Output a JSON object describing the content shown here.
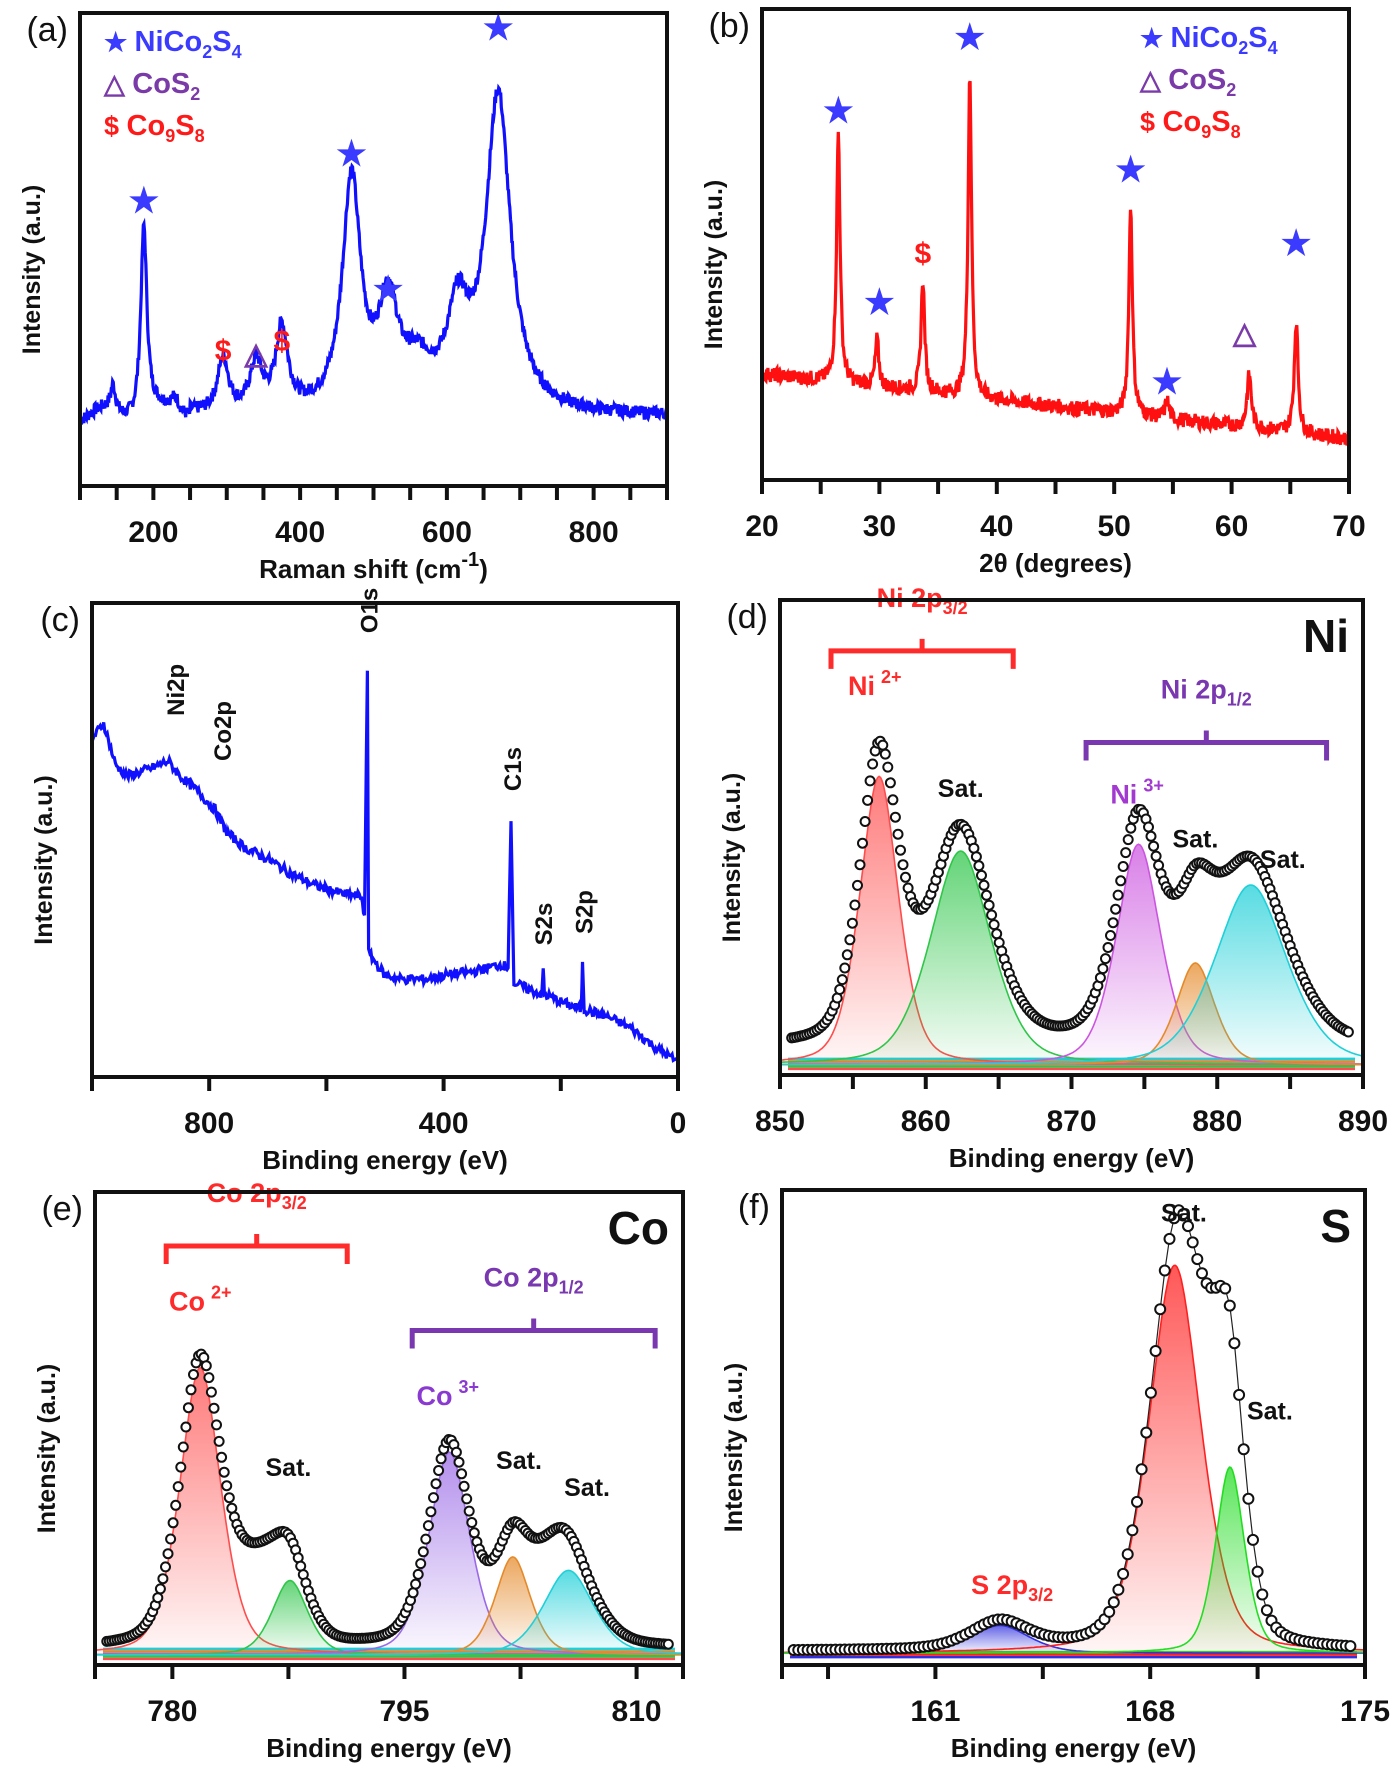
{
  "chart_data": [
    {
      "id": "a",
      "panel_label": "(a)",
      "type": "line",
      "title": "",
      "xlabel": "Raman shift (cm",
      "xlabel_sup": "-1",
      "xlabel_end": ")",
      "ylabel": "Intensity (a.u.)",
      "xlim": [
        100,
        900
      ],
      "xticks": [
        200,
        400,
        600,
        800
      ],
      "minor_step": 50,
      "color": "#1010ff",
      "baseline": 0.22,
      "noise": 0.02,
      "peaks": [
        {
          "x": 145,
          "h": 0.08,
          "w": 4
        },
        {
          "x": 187,
          "h": 0.6,
          "w": 5
        },
        {
          "x": 230,
          "h": 0.05,
          "w": 8
        },
        {
          "x": 295,
          "h": 0.17,
          "w": 9
        },
        {
          "x": 340,
          "h": 0.15,
          "w": 10
        },
        {
          "x": 375,
          "h": 0.26,
          "w": 10
        },
        {
          "x": 470,
          "h": 0.73,
          "w": 15
        },
        {
          "x": 520,
          "h": 0.32,
          "w": 16
        },
        {
          "x": 560,
          "h": 0.12,
          "w": 25
        },
        {
          "x": 615,
          "h": 0.28,
          "w": 18
        },
        {
          "x": 670,
          "h": 1.0,
          "w": 20
        }
      ],
      "legend": [
        {
          "symbol": "★",
          "label": "NiCo",
          "sub1": "2",
          "mid": "S",
          "sub2": "4",
          "color": "#3b3bff"
        },
        {
          "symbol": "△",
          "label": "CoS",
          "sub1": "2",
          "mid": "",
          "sub2": "",
          "color": "#7a3aa8"
        },
        {
          "symbol": "$",
          "label": "Co",
          "sub1": "9",
          "mid": "S",
          "sub2": "8",
          "color": "#ff1a1a"
        }
      ],
      "markers": [
        {
          "x": 187,
          "y": 0.9,
          "symbol": "★",
          "color": "#3b3bff"
        },
        {
          "x": 295,
          "y": 0.43,
          "symbol": "$",
          "color": "#ff1a1a"
        },
        {
          "x": 340,
          "y": 0.42,
          "symbol": "△",
          "color": "#7a3aa8"
        },
        {
          "x": 375,
          "y": 0.46,
          "symbol": "$",
          "color": "#ff1a1a"
        },
        {
          "x": 470,
          "y": 1.05,
          "symbol": "★",
          "color": "#3b3bff"
        },
        {
          "x": 520,
          "y": 0.62,
          "symbol": "★",
          "color": "#3b3bff"
        },
        {
          "x": 670,
          "y": 1.45,
          "symbol": "★",
          "color": "#3b3bff"
        }
      ],
      "ylim": [
        0,
        1.5
      ]
    },
    {
      "id": "b",
      "panel_label": "(b)",
      "type": "line",
      "xlabel": "2θ (degrees)",
      "ylabel": "Intensity (a.u.)",
      "xlim": [
        20,
        70
      ],
      "xticks": [
        20,
        30,
        40,
        50,
        60,
        70
      ],
      "minor_step": 5,
      "color": "#ff1010",
      "baseline_start": 0.36,
      "baseline_end": 0.14,
      "noise": 0.025,
      "peaks": [
        {
          "x": 26.5,
          "h": 0.85,
          "w": 0.18
        },
        {
          "x": 29.8,
          "h": 0.16,
          "w": 0.18
        },
        {
          "x": 33.7,
          "h": 0.38,
          "w": 0.18
        },
        {
          "x": 37.7,
          "h": 1.1,
          "w": 0.18
        },
        {
          "x": 51.4,
          "h": 0.71,
          "w": 0.18
        },
        {
          "x": 54.5,
          "h": 0.06,
          "w": 0.2
        },
        {
          "x": 61.5,
          "h": 0.18,
          "w": 0.22
        },
        {
          "x": 65.5,
          "h": 0.38,
          "w": 0.2
        }
      ],
      "legend": [
        {
          "symbol": "★",
          "label": "NiCo",
          "sub1": "2",
          "mid": "S",
          "sub2": "4",
          "color": "#3b3bff"
        },
        {
          "symbol": "△",
          "label": "CoS",
          "sub1": "2",
          "mid": "",
          "sub2": "",
          "color": "#7a3aa8"
        },
        {
          "symbol": "$",
          "label": "Co",
          "sub1": "9",
          "mid": "S",
          "sub2": "8",
          "color": "#ff1a1a"
        }
      ],
      "markers": [
        {
          "x": 26.5,
          "y": 1.25,
          "symbol": "★",
          "color": "#3b3bff"
        },
        {
          "x": 30.0,
          "y": 0.6,
          "symbol": "★",
          "color": "#3b3bff"
        },
        {
          "x": 33.7,
          "y": 0.77,
          "symbol": "$",
          "color": "#ff1a1a"
        },
        {
          "x": 37.7,
          "y": 1.5,
          "symbol": "★",
          "color": "#3b3bff"
        },
        {
          "x": 51.4,
          "y": 1.05,
          "symbol": "★",
          "color": "#3b3bff"
        },
        {
          "x": 54.5,
          "y": 0.33,
          "symbol": "★",
          "color": "#3b3bff"
        },
        {
          "x": 61.1,
          "y": 0.5,
          "symbol": "△",
          "color": "#7a3aa8"
        },
        {
          "x": 65.5,
          "y": 0.8,
          "symbol": "★",
          "color": "#3b3bff"
        }
      ],
      "ylim": [
        0,
        1.6
      ]
    },
    {
      "id": "c",
      "panel_label": "(c)",
      "type": "line",
      "xlabel": "Binding energy (eV)",
      "ylabel": "Intensity (a.u.)",
      "xlim": [
        1000,
        0
      ],
      "xticks": [
        800,
        400,
        0
      ],
      "minor_step": 200,
      "color": "#1010ff",
      "points": [
        [
          1000,
          0.72
        ],
        [
          980,
          0.76
        ],
        [
          960,
          0.65
        ],
        [
          940,
          0.62
        ],
        [
          900,
          0.64
        ],
        [
          870,
          0.66
        ],
        [
          850,
          0.62
        ],
        [
          820,
          0.58
        ],
        [
          790,
          0.53
        ],
        [
          770,
          0.47
        ],
        [
          740,
          0.43
        ],
        [
          700,
          0.4
        ],
        [
          660,
          0.36
        ],
        [
          620,
          0.33
        ],
        [
          580,
          0.31
        ],
        [
          540,
          0.3
        ],
        [
          535,
          0.25
        ],
        [
          530,
          0.9
        ],
        [
          528,
          0.15
        ],
        [
          500,
          0.09
        ],
        [
          470,
          0.08
        ],
        [
          430,
          0.08
        ],
        [
          400,
          0.09
        ],
        [
          350,
          0.1
        ],
        [
          300,
          0.12
        ],
        [
          290,
          0.11
        ],
        [
          285,
          0.5
        ],
        [
          280,
          0.07
        ],
        [
          250,
          0.05
        ],
        [
          232,
          0.04
        ],
        [
          230,
          0.11
        ],
        [
          228,
          0.04
        ],
        [
          200,
          0.02
        ],
        [
          165,
          0.0
        ],
        [
          163,
          0.13
        ],
        [
          160,
          0.0
        ],
        [
          120,
          -0.02
        ],
        [
          80,
          -0.05
        ],
        [
          40,
          -0.1
        ],
        [
          0,
          -0.14
        ]
      ],
      "ylim": [
        -0.18,
        1.08
      ],
      "annotations": [
        {
          "text": "Ni2p",
          "x": 860,
          "y": 0.78
        },
        {
          "text": "Co2p",
          "x": 780,
          "y": 0.66
        },
        {
          "text": "O1s",
          "x": 530,
          "y": 1.0
        },
        {
          "text": "C1s",
          "x": 285,
          "y": 0.58
        },
        {
          "text": "S2s",
          "x": 232,
          "y": 0.17
        },
        {
          "text": "S2p",
          "x": 163,
          "y": 0.2
        }
      ]
    },
    {
      "id": "d",
      "panel_label": "(d)",
      "type": "line",
      "corner_label": "Ni",
      "xlabel": "Binding energy (eV)",
      "ylabel": "Intensity (a.u.)",
      "xlim": [
        850,
        890
      ],
      "xticks": [
        850,
        860,
        870,
        880,
        890
      ],
      "minor_step": 5,
      "ylim": [
        0,
        1.4
      ],
      "components": [
        {
          "center": 856.8,
          "height": 0.85,
          "width": 1.4,
          "color": "#ff4d4d"
        },
        {
          "center": 862.4,
          "height": 0.63,
          "width": 2.2,
          "color": "#2fc64a"
        },
        {
          "center": 874.6,
          "height": 0.65,
          "width": 1.6,
          "color": "#cc55e0"
        },
        {
          "center": 878.5,
          "height": 0.3,
          "width": 1.4,
          "color": "#e58a2a"
        },
        {
          "center": 882.3,
          "height": 0.53,
          "width": 2.6,
          "color": "#1fd0d8"
        }
      ],
      "envelope_extra": 0.05,
      "groups": [
        {
          "label": "Ni 2p",
          "sub": "3/2",
          "color": "#ff2a2a",
          "x0": 853.5,
          "x1": 866,
          "y": 1.25,
          "ly": 1.38
        },
        {
          "label": "Ni 2p",
          "sub": "1/2",
          "color": "#7a38b0",
          "x0": 871,
          "x1": 887.5,
          "y": 0.98,
          "ly": 1.11
        }
      ],
      "annotations": [
        {
          "text": "Ni",
          "sup": "2+",
          "x": 856.5,
          "y": 1.12,
          "color": "#ff2a2a"
        },
        {
          "text": "Sat.",
          "x": 862.4,
          "y": 0.82,
          "color": "#111111"
        },
        {
          "text": "Ni",
          "sup": "3+",
          "x": 874.5,
          "y": 0.8,
          "color": "#a23ad0"
        },
        {
          "text": "Sat.",
          "x": 878.5,
          "y": 0.67,
          "color": "#111111"
        },
        {
          "text": "Sat.",
          "x": 884.5,
          "y": 0.61,
          "color": "#111111"
        }
      ]
    },
    {
      "id": "e",
      "panel_label": "(e)",
      "type": "line",
      "corner_label": "Co",
      "xlabel": "Binding energy (eV)",
      "ylabel": "Intensity (a.u.)",
      "xlim": [
        775,
        813
      ],
      "xticks": [
        780,
        795,
        810
      ],
      "minor_step": 7.5,
      "ylim": [
        0,
        1.4
      ],
      "components": [
        {
          "center": 781.8,
          "height": 0.85,
          "width": 1.4,
          "color": "#ff4d4d"
        },
        {
          "center": 787.6,
          "height": 0.22,
          "width": 1.2,
          "color": "#2fc64a"
        },
        {
          "center": 797.9,
          "height": 0.6,
          "width": 1.4,
          "color": "#9a6ae6"
        },
        {
          "center": 802.0,
          "height": 0.29,
          "width": 1.2,
          "color": "#e58a2a"
        },
        {
          "center": 805.6,
          "height": 0.25,
          "width": 1.7,
          "color": "#1fd0d8"
        }
      ],
      "shoulders": [
        {
          "center": 785.5,
          "height": 0.2,
          "width": 1.6
        },
        {
          "center": 804.5,
          "height": 0.1,
          "width": 1.3
        }
      ],
      "envelope_extra": 0.02,
      "groups": [
        {
          "label": "Co 2p",
          "sub": "3/2",
          "color": "#ff2a2a",
          "x0": 779.6,
          "x1": 791.3,
          "y": 1.24,
          "ly": 1.37
        },
        {
          "label": "Co 2p",
          "sub": "1/2",
          "color": "#7a38b0",
          "x0": 795.5,
          "x1": 811.2,
          "y": 0.99,
          "ly": 1.12
        }
      ],
      "annotations": [
        {
          "text": "Co",
          "sup": "2+",
          "x": 781.8,
          "y": 1.05,
          "color": "#ff2a2a"
        },
        {
          "text": "Sat.",
          "x": 787.5,
          "y": 0.56,
          "color": "#111111"
        },
        {
          "text": "Co",
          "sup": "3+",
          "x": 797.8,
          "y": 0.77,
          "color": "#8a3ad0"
        },
        {
          "text": "Sat.",
          "x": 802.4,
          "y": 0.58,
          "color": "#111111"
        },
        {
          "text": "Sat.",
          "x": 806.8,
          "y": 0.5,
          "color": "#111111"
        }
      ]
    },
    {
      "id": "f",
      "panel_label": "(f)",
      "type": "line",
      "corner_label": "S",
      "xlabel": "Binding energy (eV)",
      "ylabel": "Intensity (a.u.)",
      "xlim": [
        156,
        175
      ],
      "xticks": [
        161,
        168,
        175
      ],
      "minor_step": 3.5,
      "ylim": [
        0,
        1.2
      ],
      "components": [
        {
          "center": 163.1,
          "height": 0.07,
          "width": 1.0,
          "color": "#3030e0"
        },
        {
          "center": 168.8,
          "height": 0.98,
          "width": 0.9,
          "color": "#ff2020"
        },
        {
          "center": 170.6,
          "height": 0.47,
          "width": 0.5,
          "color": "#22dd22"
        }
      ],
      "envelope_extra": 0.005,
      "groups": [],
      "annotations": [
        {
          "text": "S 2p",
          "sub": "3/2",
          "x": 163.5,
          "y": 0.18,
          "color": "#ff2a2a"
        },
        {
          "text": "Sat.",
          "x": 169.1,
          "y": 1.12,
          "color": "#111111"
        },
        {
          "text": "Sat.",
          "x": 171.9,
          "y": 0.62,
          "color": "#111111"
        }
      ]
    }
  ]
}
